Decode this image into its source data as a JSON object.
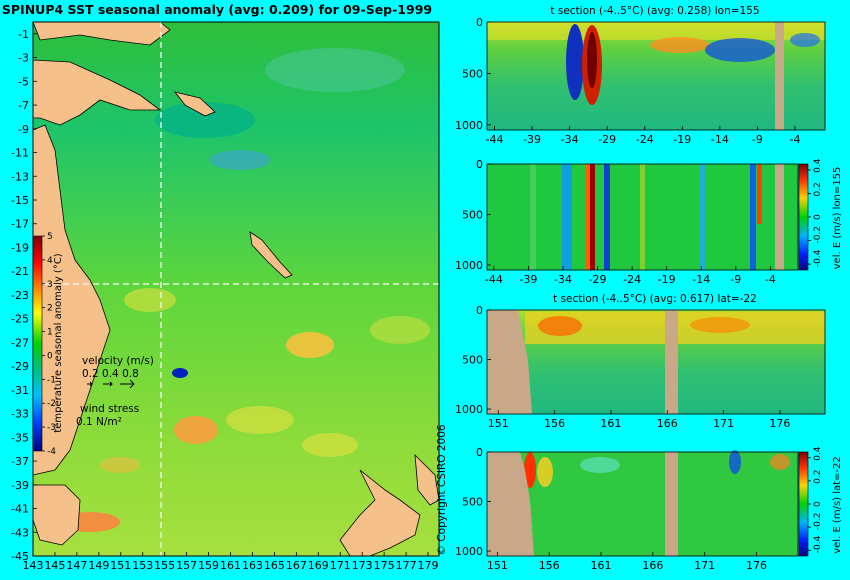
{
  "chart_data": [
    {
      "type": "heatmap",
      "id": "sst-map",
      "title": "SPINUP4 SST seasonal anomaly (avg: 0.209) for 09-Sep-1999",
      "xticks": [
        "143",
        "145",
        "147",
        "149",
        "151",
        "153",
        "155",
        "157",
        "159",
        "161",
        "163",
        "165",
        "167",
        "169",
        "171",
        "173",
        "175",
        "177",
        "179"
      ],
      "yticks": [
        "-1",
        "-3",
        "-5",
        "-7",
        "-9",
        "-11",
        "-13",
        "-15",
        "-17",
        "-19",
        "-21",
        "-23",
        "-25",
        "-27",
        "-29",
        "-31",
        "-33",
        "-35",
        "-37",
        "-39",
        "-41",
        "-43",
        "-45"
      ],
      "xlim": [
        143,
        180
      ],
      "ylim": [
        -45,
        0
      ],
      "crosshair": {
        "lon": 155,
        "lat": -22
      },
      "colorbar": {
        "label": "temperature seasonal anomaly (°C)",
        "ticks": [
          "5",
          "4",
          "3",
          "2",
          "1",
          "0",
          "-1",
          "-2",
          "-3",
          "-4"
        ],
        "range": [
          -4,
          5
        ]
      },
      "velocity_legend": {
        "label": "velocity (m/s)",
        "values": "0.2 0.4 0.8"
      },
      "wind_legend": {
        "label": "wind stress",
        "value": "0.1 N/m²"
      }
    },
    {
      "type": "heatmap",
      "id": "t-section-lon",
      "title": "t section (-4..5°C) (avg: 0.258) lon=155",
      "xticks": [
        "-44",
        "-39",
        "-34",
        "-29",
        "-24",
        "-19",
        "-14",
        "-9",
        "-4"
      ],
      "yticks": [
        "0",
        "500",
        "1000"
      ],
      "xlim": [
        -45,
        0
      ],
      "ylim": [
        1050,
        0
      ]
    },
    {
      "type": "heatmap",
      "id": "vel-lon",
      "ylabel": "vel. E (m/s) lon=155",
      "xticks": [
        "-44",
        "-39",
        "-34",
        "-29",
        "-24",
        "-19",
        "-14",
        "-9",
        "-4"
      ],
      "yticks": [
        "0",
        "500",
        "1000"
      ],
      "colorbar_ticks": [
        "0.4",
        "0.2",
        "0",
        "-0.2",
        "-0.4"
      ],
      "xlim": [
        -45,
        0
      ],
      "ylim": [
        1050,
        0
      ]
    },
    {
      "type": "heatmap",
      "id": "t-section-lat",
      "title": "t section (-4..5°C) (avg: 0.617) lat=-22",
      "xticks": [
        "151",
        "156",
        "161",
        "166",
        "171",
        "176"
      ],
      "yticks": [
        "0",
        "500",
        "1000"
      ],
      "xlim": [
        150,
        180
      ],
      "ylim": [
        1050,
        0
      ]
    },
    {
      "type": "heatmap",
      "id": "vel-lat",
      "ylabel": "vel. E (m/s) lat=-22",
      "xticks": [
        "151",
        "156",
        "161",
        "166",
        "171",
        "176"
      ],
      "yticks": [
        "0",
        "500",
        "1000"
      ],
      "colorbar_ticks": [
        "0.4",
        "0.2",
        "0",
        "-0.2",
        "-0.4"
      ],
      "xlim": [
        150,
        180
      ],
      "ylim": [
        1050,
        0
      ]
    }
  ],
  "copyright": "© Copyright CSIRO 2006",
  "colors": {
    "background": "#00ffff",
    "land": "#d2b48c",
    "anomaly_scale": [
      "#00007f",
      "#0000ff",
      "#0080ff",
      "#00ffff",
      "#00c060",
      "#00d000",
      "#ffff00",
      "#ff8000",
      "#ff0000",
      "#800000"
    ]
  }
}
